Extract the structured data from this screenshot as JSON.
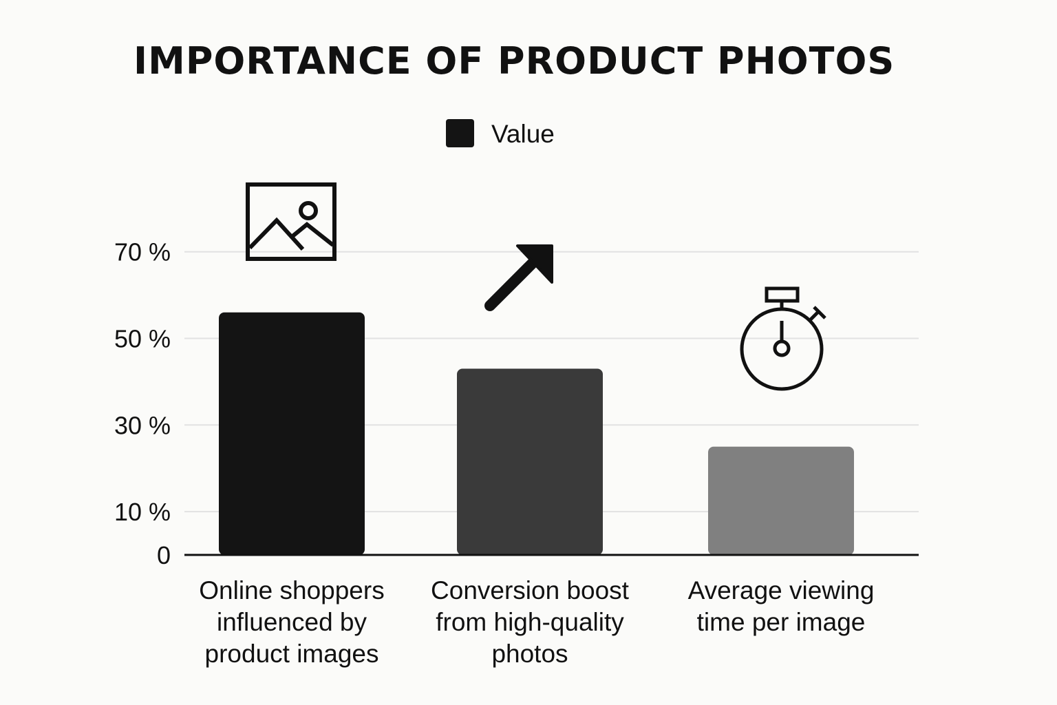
{
  "chart_data": {
    "type": "bar",
    "title": "IMPORTANCE OF PRODUCT PHOTOS",
    "categories": [
      [
        "Online shoppers",
        "influenced by",
        "product images"
      ],
      [
        "Conversion boost",
        "from high-quality",
        "photos"
      ],
      [
        "Average viewing",
        "time per image"
      ]
    ],
    "series": [
      {
        "name": "Value",
        "values": [
          56,
          43,
          25
        ]
      }
    ],
    "bar_colors": [
      "#141414",
      "#3a3a3a",
      "#808080"
    ],
    "legend_color": "#141414",
    "legend_position": "top-center",
    "y_ticks": [
      {
        "value": 0,
        "label": "0"
      },
      {
        "value": 10,
        "label": "10 %"
      },
      {
        "value": 30,
        "label": "30 %"
      },
      {
        "value": 50,
        "label": "50 %"
      },
      {
        "value": 70,
        "label": "70 %"
      }
    ],
    "ylim": [
      0,
      70
    ],
    "xlabel": "",
    "ylabel": "",
    "grid": true,
    "grid_color": "#e2e2e2",
    "icons": [
      "image-icon",
      "arrow-up-right-icon",
      "stopwatch-icon"
    ]
  }
}
